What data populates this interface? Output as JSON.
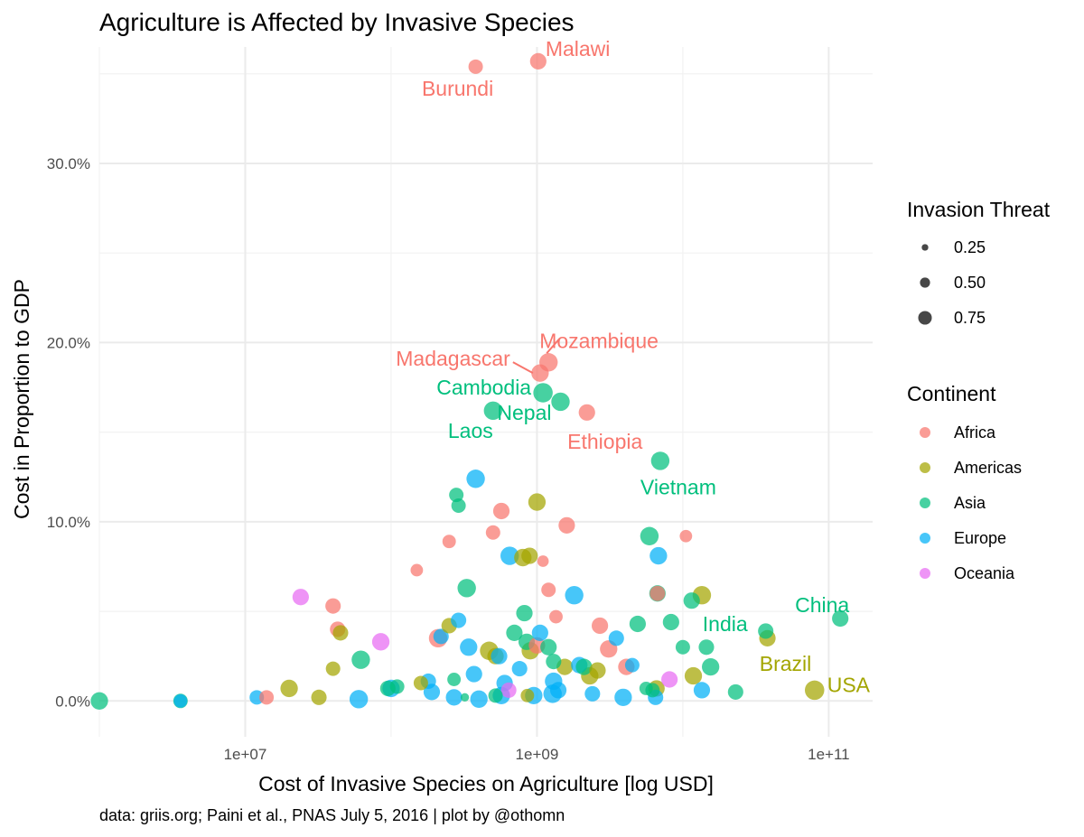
{
  "title": "Agriculture is Affected by Invasive Species",
  "caption": "data: griis.org; Paini et al., PNAS July 5, 2016 | plot by @othomn",
  "colors": {
    "Africa": "#F8766D",
    "Americas": "#A3A500",
    "Asia": "#00BF7D",
    "Europe": "#00B0F6",
    "Oceania": "#E76BF3"
  },
  "legend": {
    "size_title": "Invasion Threat",
    "size_entries": [
      {
        "label": "0.25",
        "value": 0.25
      },
      {
        "label": "0.50",
        "value": 0.5
      },
      {
        "label": "0.75",
        "value": 0.75
      }
    ],
    "color_title": "Continent",
    "color_entries": [
      "Africa",
      "Americas",
      "Asia",
      "Europe",
      "Oceania"
    ]
  },
  "chart_data": {
    "type": "scatter",
    "title": "Agriculture is Affected by Invasive Species",
    "xlabel": "Cost of Invasive Species on Agriculture [log USD]",
    "ylabel": "Cost in Proportion to GDP",
    "x_scale": "log10",
    "xlim": [
      1000000,
      200000000000
    ],
    "ylim": [
      -0.02,
      0.365
    ],
    "x_ticks": [
      {
        "value": 10000000,
        "label": "1e+07"
      },
      {
        "value": 1000000000,
        "label": "1e+09"
      },
      {
        "value": 100000000000,
        "label": "1e+11"
      }
    ],
    "y_ticks": [
      {
        "value": 0.0,
        "label": "0.0%"
      },
      {
        "value": 0.1,
        "label": "10.0%"
      },
      {
        "value": 0.2,
        "label": "20.0%"
      },
      {
        "value": 0.3,
        "label": "30.0%"
      }
    ],
    "grid": true,
    "legend_position": "right",
    "points": [
      {
        "label": "Malawi",
        "continent": "Africa",
        "x": 1020000000,
        "y": 0.357,
        "size": 0.6
      },
      {
        "label": "Burundi",
        "continent": "Africa",
        "x": 380000000,
        "y": 0.354,
        "size": 0.5
      },
      {
        "label": "Mozambique",
        "continent": "Africa",
        "x": 1200000000,
        "y": 0.189,
        "size": 0.7
      },
      {
        "label": "Madagascar",
        "continent": "Africa",
        "x": 1050000000,
        "y": 0.183,
        "size": 0.65
      },
      {
        "label": "Cambodia",
        "continent": "Asia",
        "x": 1100000000,
        "y": 0.172,
        "size": 0.75
      },
      {
        "label": "Nepal",
        "continent": "Asia",
        "x": 1450000000,
        "y": 0.167,
        "size": 0.7
      },
      {
        "label": "Laos",
        "continent": "Asia",
        "x": 500000000,
        "y": 0.162,
        "size": 0.7
      },
      {
        "label": "Ethiopia",
        "continent": "Africa",
        "x": 2200000000,
        "y": 0.161,
        "size": 0.6
      },
      {
        "label": "Vietnam",
        "continent": "Asia",
        "x": 7000000000,
        "y": 0.134,
        "size": 0.7
      },
      {
        "label": "China",
        "continent": "Asia",
        "x": 120000000000,
        "y": 0.046,
        "size": 0.6
      },
      {
        "label": "India",
        "continent": "Asia",
        "x": 37000000000,
        "y": 0.039,
        "size": 0.55
      },
      {
        "label": "Brazil",
        "continent": "Americas",
        "x": 38000000000,
        "y": 0.035,
        "size": 0.6
      },
      {
        "label": "USA",
        "continent": "Americas",
        "x": 80000000000,
        "y": 0.006,
        "size": 0.75
      },
      {
        "label": "",
        "continent": "Asia",
        "x": 1000000,
        "y": 0.0,
        "size": 0.65
      },
      {
        "label": "",
        "continent": "Asia",
        "x": 3600000,
        "y": 0.0,
        "size": 0.5
      },
      {
        "label": "",
        "continent": "Europe",
        "x": 3600000,
        "y": 0.0,
        "size": 0.45
      },
      {
        "label": "",
        "continent": "Europe",
        "x": 12000000,
        "y": 0.002,
        "size": 0.5
      },
      {
        "label": "",
        "continent": "Africa",
        "x": 14000000,
        "y": 0.002,
        "size": 0.5
      },
      {
        "label": "",
        "continent": "Americas",
        "x": 20000000,
        "y": 0.007,
        "size": 0.65
      },
      {
        "label": "",
        "continent": "Americas",
        "x": 32000000,
        "y": 0.002,
        "size": 0.55
      },
      {
        "label": "",
        "continent": "Oceania",
        "x": 24000000,
        "y": 0.058,
        "size": 0.6
      },
      {
        "label": "",
        "continent": "Africa",
        "x": 40000000,
        "y": 0.053,
        "size": 0.55
      },
      {
        "label": "",
        "continent": "Africa",
        "x": 43000000,
        "y": 0.04,
        "size": 0.55
      },
      {
        "label": "",
        "continent": "Americas",
        "x": 45000000,
        "y": 0.038,
        "size": 0.55
      },
      {
        "label": "",
        "continent": "Americas",
        "x": 40000000,
        "y": 0.018,
        "size": 0.5
      },
      {
        "label": "",
        "continent": "Europe",
        "x": 60000000,
        "y": 0.001,
        "size": 0.7
      },
      {
        "label": "",
        "continent": "Asia",
        "x": 62000000,
        "y": 0.023,
        "size": 0.7
      },
      {
        "label": "",
        "continent": "Oceania",
        "x": 85000000,
        "y": 0.033,
        "size": 0.65
      },
      {
        "label": "",
        "continent": "Europe",
        "x": 100000000,
        "y": 0.007,
        "size": 0.65
      },
      {
        "label": "",
        "continent": "Asia",
        "x": 110000000,
        "y": 0.008,
        "size": 0.5
      },
      {
        "label": "",
        "continent": "Asia",
        "x": 95000000,
        "y": 0.007,
        "size": 0.55
      },
      {
        "label": "",
        "continent": "Americas",
        "x": 160000000,
        "y": 0.01,
        "size": 0.5
      },
      {
        "label": "",
        "continent": "Africa",
        "x": 150000000,
        "y": 0.073,
        "size": 0.4
      },
      {
        "label": "",
        "continent": "Europe",
        "x": 180000000,
        "y": 0.011,
        "size": 0.55
      },
      {
        "label": "",
        "continent": "Europe",
        "x": 190000000,
        "y": 0.005,
        "size": 0.6
      },
      {
        "label": "",
        "continent": "Africa",
        "x": 210000000,
        "y": 0.035,
        "size": 0.7
      },
      {
        "label": "",
        "continent": "Europe",
        "x": 220000000,
        "y": 0.036,
        "size": 0.55
      },
      {
        "label": "",
        "continent": "Americas",
        "x": 250000000,
        "y": 0.042,
        "size": 0.55
      },
      {
        "label": "",
        "continent": "Africa",
        "x": 250000000,
        "y": 0.089,
        "size": 0.45
      },
      {
        "label": "",
        "continent": "Asia",
        "x": 280000000,
        "y": 0.115,
        "size": 0.5
      },
      {
        "label": "",
        "continent": "Asia",
        "x": 290000000,
        "y": 0.109,
        "size": 0.5
      },
      {
        "label": "",
        "continent": "Europe",
        "x": 290000000,
        "y": 0.045,
        "size": 0.55
      },
      {
        "label": "",
        "continent": "Asia",
        "x": 270000000,
        "y": 0.012,
        "size": 0.45
      },
      {
        "label": "",
        "continent": "Europe",
        "x": 270000000,
        "y": 0.002,
        "size": 0.6
      },
      {
        "label": "",
        "continent": "Asia",
        "x": 320000000,
        "y": 0.002,
        "size": 0.2
      },
      {
        "label": "",
        "continent": "Asia",
        "x": 330000000,
        "y": 0.063,
        "size": 0.7
      },
      {
        "label": "",
        "continent": "Europe",
        "x": 340000000,
        "y": 0.03,
        "size": 0.65
      },
      {
        "label": "",
        "continent": "Europe",
        "x": 380000000,
        "y": 0.124,
        "size": 0.7
      },
      {
        "label": "",
        "continent": "Europe",
        "x": 370000000,
        "y": 0.015,
        "size": 0.6
      },
      {
        "label": "",
        "continent": "Europe",
        "x": 400000000,
        "y": 0.001,
        "size": 0.65
      },
      {
        "label": "",
        "continent": "Americas",
        "x": 470000000,
        "y": 0.028,
        "size": 0.7
      },
      {
        "label": "",
        "continent": "Americas",
        "x": 520000000,
        "y": 0.025,
        "size": 0.6
      },
      {
        "label": "",
        "continent": "Africa",
        "x": 500000000,
        "y": 0.094,
        "size": 0.5
      },
      {
        "label": "",
        "continent": "Africa",
        "x": 570000000,
        "y": 0.106,
        "size": 0.6
      },
      {
        "label": "",
        "continent": "Europe",
        "x": 550000000,
        "y": 0.025,
        "size": 0.6
      },
      {
        "label": "",
        "continent": "Asia",
        "x": 520000000,
        "y": 0.003,
        "size": 0.5
      },
      {
        "label": "",
        "continent": "Europe",
        "x": 570000000,
        "y": 0.003,
        "size": 0.65
      },
      {
        "label": "",
        "continent": "Europe",
        "x": 600000000,
        "y": 0.01,
        "size": 0.6
      },
      {
        "label": "",
        "continent": "Oceania",
        "x": 640000000,
        "y": 0.006,
        "size": 0.55
      },
      {
        "label": "",
        "continent": "Europe",
        "x": 650000000,
        "y": 0.081,
        "size": 0.7
      },
      {
        "label": "",
        "continent": "Asia",
        "x": 700000000,
        "y": 0.038,
        "size": 0.6
      },
      {
        "label": "",
        "continent": "Europe",
        "x": 760000000,
        "y": 0.018,
        "size": 0.55
      },
      {
        "label": "",
        "continent": "Americas",
        "x": 800000000,
        "y": 0.08,
        "size": 0.65
      },
      {
        "label": "",
        "continent": "Americas",
        "x": 890000000,
        "y": 0.081,
        "size": 0.6
      },
      {
        "label": "",
        "continent": "Asia",
        "x": 820000000,
        "y": 0.049,
        "size": 0.6
      },
      {
        "label": "",
        "continent": "Asia",
        "x": 850000000,
        "y": 0.033,
        "size": 0.6
      },
      {
        "label": "",
        "continent": "Americas",
        "x": 900000000,
        "y": 0.028,
        "size": 0.65
      },
      {
        "label": "",
        "continent": "Americas",
        "x": 860000000,
        "y": 0.003,
        "size": 0.45
      },
      {
        "label": "",
        "continent": "Europe",
        "x": 950000000,
        "y": 0.003,
        "size": 0.65
      },
      {
        "label": "",
        "continent": "Americas",
        "x": 1000000000,
        "y": 0.111,
        "size": 0.65
      },
      {
        "label": "",
        "continent": "Africa",
        "x": 1000000000,
        "y": 0.031,
        "size": 0.6
      },
      {
        "label": "",
        "continent": "Europe",
        "x": 1050000000,
        "y": 0.038,
        "size": 0.6
      },
      {
        "label": "",
        "continent": "Africa",
        "x": 1100000000,
        "y": 0.078,
        "size": 0.35
      },
      {
        "label": "",
        "continent": "Africa",
        "x": 1200000000,
        "y": 0.062,
        "size": 0.5
      },
      {
        "label": "",
        "continent": "Asia",
        "x": 1200000000,
        "y": 0.03,
        "size": 0.6
      },
      {
        "label": "",
        "continent": "Europe",
        "x": 1300000000,
        "y": 0.011,
        "size": 0.65
      },
      {
        "label": "",
        "continent": "Europe",
        "x": 1280000000,
        "y": 0.004,
        "size": 0.7
      },
      {
        "label": "",
        "continent": "Asia",
        "x": 1300000000,
        "y": 0.022,
        "size": 0.55
      },
      {
        "label": "",
        "continent": "Africa",
        "x": 1350000000,
        "y": 0.047,
        "size": 0.45
      },
      {
        "label": "",
        "continent": "Europe",
        "x": 1400000000,
        "y": 0.006,
        "size": 0.6
      },
      {
        "label": "",
        "continent": "Americas",
        "x": 1550000000,
        "y": 0.019,
        "size": 0.6
      },
      {
        "label": "",
        "continent": "Africa",
        "x": 1600000000,
        "y": 0.098,
        "size": 0.6
      },
      {
        "label": "",
        "continent": "Europe",
        "x": 1800000000,
        "y": 0.059,
        "size": 0.7
      },
      {
        "label": "",
        "continent": "Europe",
        "x": 1950000000,
        "y": 0.02,
        "size": 0.6
      },
      {
        "label": "",
        "continent": "Asia",
        "x": 2100000000,
        "y": 0.019,
        "size": 0.6
      },
      {
        "label": "",
        "continent": "Americas",
        "x": 2300000000,
        "y": 0.014,
        "size": 0.65
      },
      {
        "label": "",
        "continent": "Americas",
        "x": 2600000000,
        "y": 0.017,
        "size": 0.6
      },
      {
        "label": "",
        "continent": "Europe",
        "x": 2400000000,
        "y": 0.004,
        "size": 0.55
      },
      {
        "label": "",
        "continent": "Africa",
        "x": 2700000000,
        "y": 0.042,
        "size": 0.6
      },
      {
        "label": "",
        "continent": "Africa",
        "x": 3100000000,
        "y": 0.029,
        "size": 0.65
      },
      {
        "label": "",
        "continent": "Europe",
        "x": 3500000000,
        "y": 0.035,
        "size": 0.55
      },
      {
        "label": "",
        "continent": "Africa",
        "x": 4100000000,
        "y": 0.019,
        "size": 0.6
      },
      {
        "label": "",
        "continent": "Europe",
        "x": 3900000000,
        "y": 0.002,
        "size": 0.65
      },
      {
        "label": "",
        "continent": "Europe",
        "x": 4500000000,
        "y": 0.02,
        "size": 0.5
      },
      {
        "label": "",
        "continent": "Asia",
        "x": 4900000000,
        "y": 0.043,
        "size": 0.6
      },
      {
        "label": "",
        "continent": "Asia",
        "x": 5600000000,
        "y": 0.007,
        "size": 0.45
      },
      {
        "label": "",
        "continent": "Asia",
        "x": 5900000000,
        "y": 0.092,
        "size": 0.7
      },
      {
        "label": "",
        "continent": "Asia",
        "x": 6200000000,
        "y": 0.006,
        "size": 0.5
      },
      {
        "label": "",
        "continent": "Americas",
        "x": 6600000000,
        "y": 0.007,
        "size": 0.6
      },
      {
        "label": "",
        "continent": "Africa",
        "x": 6700000000,
        "y": 0.06,
        "size": 0.55
      },
      {
        "label": "",
        "continent": "Asia",
        "x": 6700000000,
        "y": 0.06,
        "size": 0.6
      },
      {
        "label": "",
        "continent": "Europe",
        "x": 6800000000,
        "y": 0.081,
        "size": 0.65
      },
      {
        "label": "",
        "continent": "Europe",
        "x": 6500000000,
        "y": 0.002,
        "size": 0.55
      },
      {
        "label": "",
        "continent": "Oceania",
        "x": 8100000000,
        "y": 0.012,
        "size": 0.6
      },
      {
        "label": "",
        "continent": "Asia",
        "x": 8300000000,
        "y": 0.044,
        "size": 0.6
      },
      {
        "label": "",
        "continent": "Asia",
        "x": 10000000000,
        "y": 0.03,
        "size": 0.5
      },
      {
        "label": "",
        "continent": "Africa",
        "x": 10500000000,
        "y": 0.092,
        "size": 0.4
      },
      {
        "label": "",
        "continent": "Asia",
        "x": 11500000000,
        "y": 0.056,
        "size": 0.6
      },
      {
        "label": "",
        "continent": "Americas",
        "x": 11800000000,
        "y": 0.014,
        "size": 0.65
      },
      {
        "label": "",
        "continent": "Americas",
        "x": 13500000000,
        "y": 0.059,
        "size": 0.7
      },
      {
        "label": "",
        "continent": "Europe",
        "x": 13500000000,
        "y": 0.006,
        "size": 0.6
      },
      {
        "label": "",
        "continent": "Asia",
        "x": 14500000000,
        "y": 0.03,
        "size": 0.55
      },
      {
        "label": "",
        "continent": "Asia",
        "x": 15500000000,
        "y": 0.019,
        "size": 0.65
      },
      {
        "label": "",
        "continent": "Asia",
        "x": 23000000000,
        "y": 0.005,
        "size": 0.55
      }
    ]
  }
}
